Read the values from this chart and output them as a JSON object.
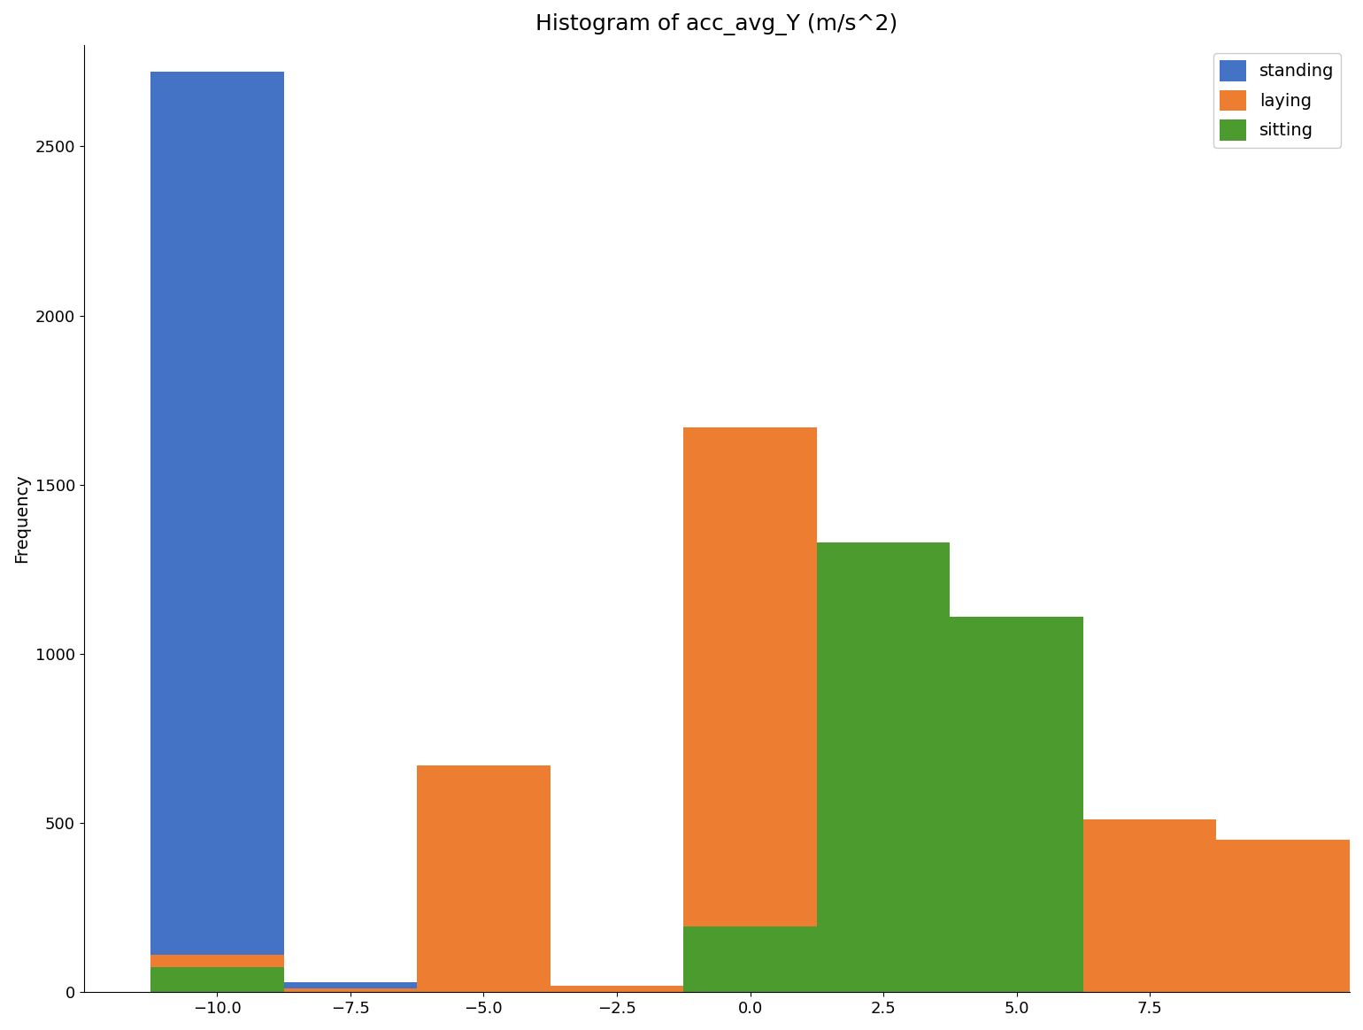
{
  "title": "Histogram of acc_avg_Y (m/s^2)",
  "ylabel": "Frequency",
  "xlabel": "",
  "bin_edges": [
    -11.25,
    -8.75,
    -6.25,
    -3.75,
    -1.25,
    1.25,
    3.75,
    6.25,
    8.75,
    11.25
  ],
  "series": [
    {
      "label": "standing",
      "color": "#4472C4",
      "counts": [
        2720,
        30,
        0,
        0,
        0,
        0,
        0,
        0,
        0
      ]
    },
    {
      "label": "laying",
      "color": "#ED7D31",
      "counts": [
        110,
        10,
        670,
        20,
        1670,
        65,
        15,
        510,
        450
      ]
    },
    {
      "label": "sitting",
      "color": "#4C9B2F",
      "counts": [
        75,
        0,
        0,
        0,
        195,
        1330,
        1110,
        0,
        0
      ]
    }
  ],
  "ylim": [
    0,
    2800
  ],
  "xlim": [
    -12.5,
    11.25
  ],
  "xticks": [
    -10,
    -7.5,
    -5.0,
    -2.5,
    0.0,
    2.5,
    5.0,
    7.5
  ],
  "yticks": [
    0,
    500,
    1000,
    1500,
    2000,
    2500
  ],
  "legend_loc": "upper right",
  "figsize": [
    15.4,
    11.64
  ],
  "dpi": 100
}
